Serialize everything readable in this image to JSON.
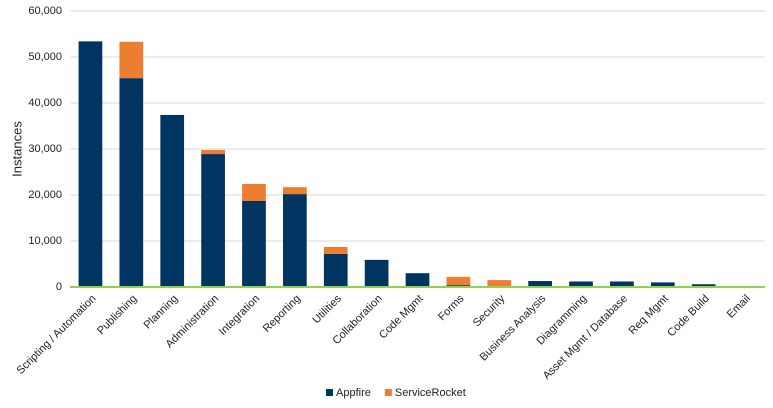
{
  "chart_data": {
    "type": "stacked_bar",
    "y_label": "Instances",
    "categories": [
      "Scripting / Automation",
      "Publishing",
      "Planning",
      "Administration",
      "Integration",
      "Reporting",
      "Utilities",
      "Collaboration",
      "Code Mgmt",
      "Forms",
      "Security",
      "Business Analysis",
      "Diagramming",
      "Asset Mgmt / Database",
      "Req Mgmt",
      "Code Build",
      "Email"
    ],
    "series": [
      {
        "name": "Appfire",
        "color": "#003461",
        "values": [
          53400,
          45400,
          37400,
          28900,
          18700,
          20200,
          7200,
          5900,
          3000,
          400,
          0,
          1300,
          1200,
          1200,
          1000,
          600,
          0
        ]
      },
      {
        "name": "ServiceRocket",
        "color": "#ed7d31",
        "values": [
          0,
          7900,
          0,
          900,
          3700,
          1500,
          1500,
          0,
          0,
          1800,
          1500,
          0,
          0,
          0,
          0,
          0,
          0
        ]
      }
    ],
    "ylim": [
      0,
      60000
    ],
    "yticks": [
      0,
      {
        "value": 10000,
        "label": "10,000"
      },
      {
        "value": 20000,
        "label": "20,000"
      },
      {
        "value": 30000,
        "label": "30,000"
      },
      {
        "value": 40000,
        "label": "40,000"
      },
      {
        "value": 50000,
        "label": "50,000"
      },
      {
        "value": 60000,
        "label": "60,000"
      }
    ],
    "grid": true,
    "legend": "bottom"
  }
}
